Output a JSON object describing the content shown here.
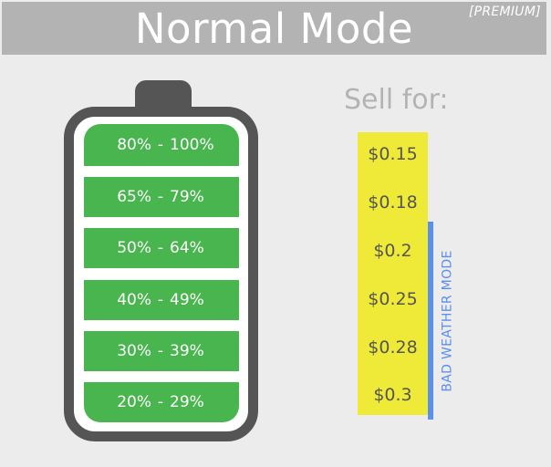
{
  "header": {
    "title": "Normal Mode",
    "badge": "[PREMIUM]"
  },
  "battery": {
    "levels": [
      {
        "low": "80%",
        "sep": "-",
        "high": "100%"
      },
      {
        "low": "65%",
        "sep": "-",
        "high": "79%"
      },
      {
        "low": "50%",
        "sep": "-",
        "high": "64%"
      },
      {
        "low": "40%",
        "sep": "-",
        "high": "49%"
      },
      {
        "low": "30%",
        "sep": "-",
        "high": "39%"
      },
      {
        "low": "20%",
        "sep": "-",
        "high": "29%"
      }
    ]
  },
  "pricing": {
    "heading": "Sell for:",
    "prices": [
      "$0.15",
      "$0.18",
      "$0.2",
      "$0.25",
      "$0.28",
      "$0.3"
    ],
    "bad_weather_label": "BAD WEATHER MODE"
  },
  "colors": {
    "header_bg": "#b3b3b3",
    "battery_outline": "#555555",
    "level_fill": "#49b54f",
    "price_highlight": "#eeea37",
    "bad_weather_accent": "#5b8ff0"
  }
}
